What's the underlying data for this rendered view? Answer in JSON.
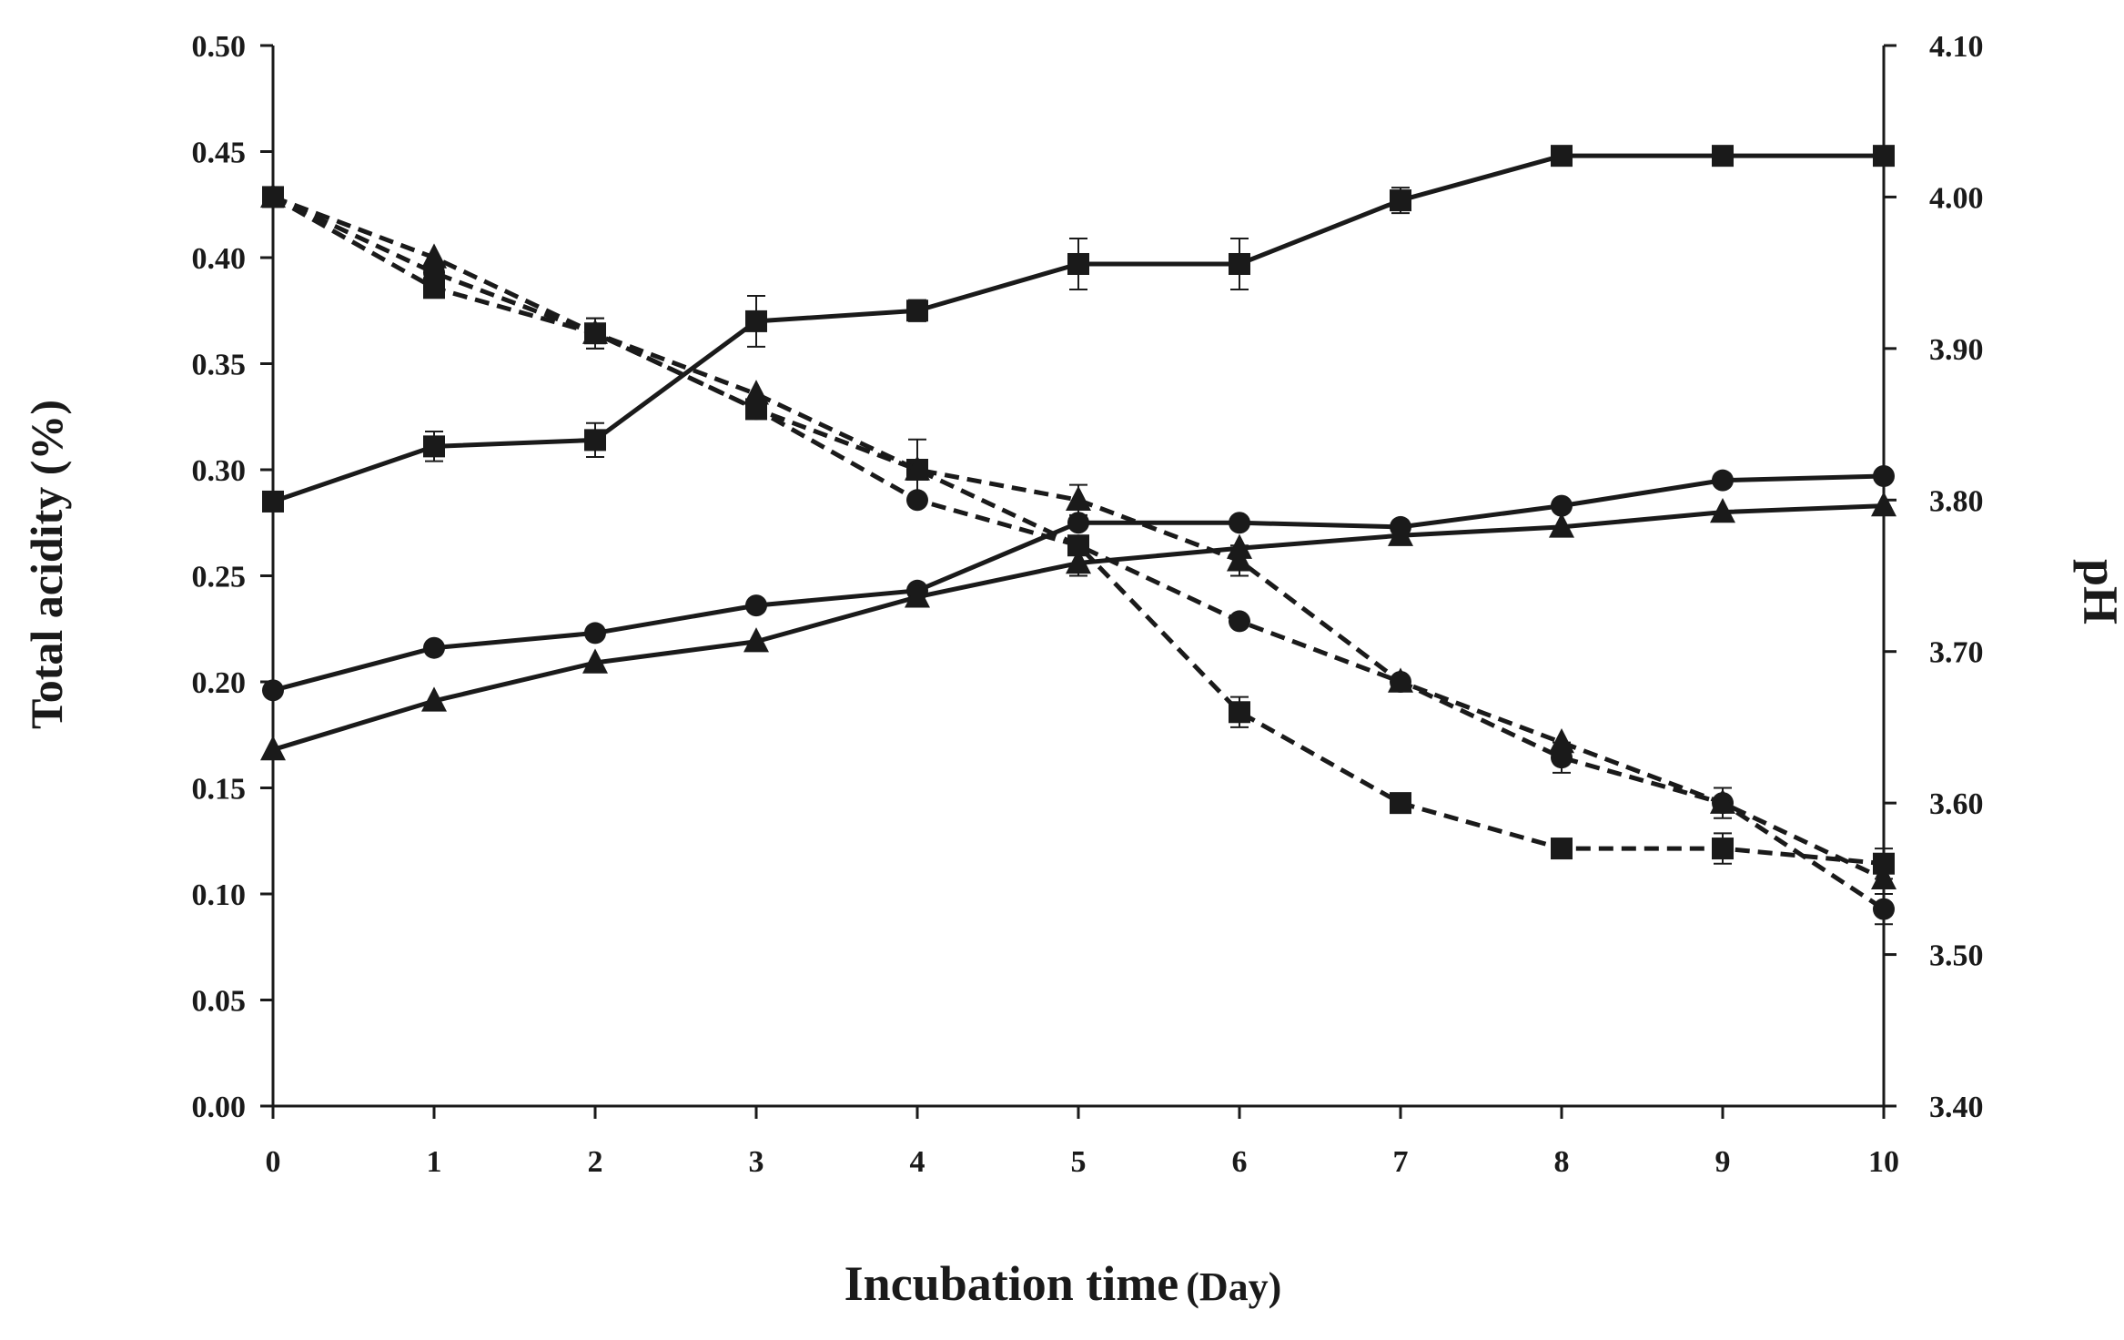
{
  "chart_data": {
    "type": "line",
    "xlabel": "Incubation time",
    "xlabel_unit": "(Day)",
    "ylabel": "Total acidity (%)",
    "y2label": "pH",
    "x": [
      0,
      1,
      2,
      3,
      4,
      5,
      6,
      7,
      8,
      9,
      10
    ],
    "xlim": [
      0,
      10
    ],
    "ylim": [
      0.0,
      0.5
    ],
    "y2lim": [
      3.4,
      4.1
    ],
    "grid": false,
    "x_tick_labels": [
      "0",
      "1",
      "2",
      "3",
      "4",
      "5",
      "6",
      "7",
      "8",
      "9",
      "10"
    ],
    "y_tick_labels": [
      "0.00",
      "0.05",
      "0.10",
      "0.15",
      "0.20",
      "0.25",
      "0.30",
      "0.35",
      "0.40",
      "0.45",
      "0.50"
    ],
    "y2_tick_labels": [
      "3.40",
      "3.50",
      "3.60",
      "3.70",
      "3.80",
      "3.90",
      "4.00",
      "4.10"
    ],
    "series": [
      {
        "axis": "left",
        "marker": "square",
        "line": "solid",
        "values": [
          0.285,
          0.311,
          0.314,
          0.37,
          0.375,
          0.397,
          0.397,
          0.427,
          0.448,
          0.448,
          0.448
        ],
        "errors": [
          0.003,
          0.007,
          0.008,
          0.012,
          0.005,
          0.012,
          0.012,
          0.006,
          0.0,
          0.0,
          0.0
        ]
      },
      {
        "axis": "left",
        "marker": "circle",
        "line": "solid",
        "values": [
          0.196,
          0.216,
          0.223,
          0.236,
          0.243,
          0.275,
          0.275,
          0.273,
          0.283,
          0.295,
          0.297
        ],
        "errors": [
          0.0,
          0.0,
          0.0,
          0.0,
          0.0,
          0.0,
          0.0,
          0.0,
          0.0,
          0.0,
          0.0
        ]
      },
      {
        "axis": "left",
        "marker": "triangle",
        "line": "solid",
        "values": [
          0.168,
          0.191,
          0.209,
          0.219,
          0.24,
          0.256,
          0.263,
          0.269,
          0.273,
          0.28,
          0.283
        ],
        "errors": [
          0.0,
          0.0,
          0.0,
          0.0,
          0.0,
          0.006,
          0.0,
          0.0,
          0.0,
          0.0,
          0.0
        ]
      },
      {
        "axis": "right",
        "marker": "square",
        "line": "dashed",
        "values": [
          4.0,
          3.94,
          3.91,
          3.86,
          3.82,
          3.77,
          3.66,
          3.6,
          3.57,
          3.57,
          3.56
        ],
        "errors": [
          0.0,
          0.0,
          0.01,
          0.0,
          0.0,
          0.0,
          0.01,
          0.0,
          0.0,
          0.01,
          0.01
        ]
      },
      {
        "axis": "right",
        "marker": "circle",
        "line": "dashed",
        "values": [
          4.0,
          3.95,
          3.91,
          3.86,
          3.8,
          3.77,
          3.72,
          3.68,
          3.63,
          3.6,
          3.53
        ],
        "errors": [
          0.0,
          0.0,
          0.01,
          0.0,
          0.0,
          0.0,
          0.0,
          0.0,
          0.01,
          0.01,
          0.01
        ]
      },
      {
        "axis": "right",
        "marker": "triangle",
        "line": "dashed",
        "values": [
          4.0,
          3.96,
          3.91,
          3.87,
          3.82,
          3.8,
          3.76,
          3.68,
          3.64,
          3.6,
          3.55
        ],
        "errors": [
          0.0,
          0.0,
          0.0,
          0.0,
          0.02,
          0.01,
          0.01,
          0.0,
          0.0,
          0.0,
          0.0
        ]
      }
    ]
  }
}
